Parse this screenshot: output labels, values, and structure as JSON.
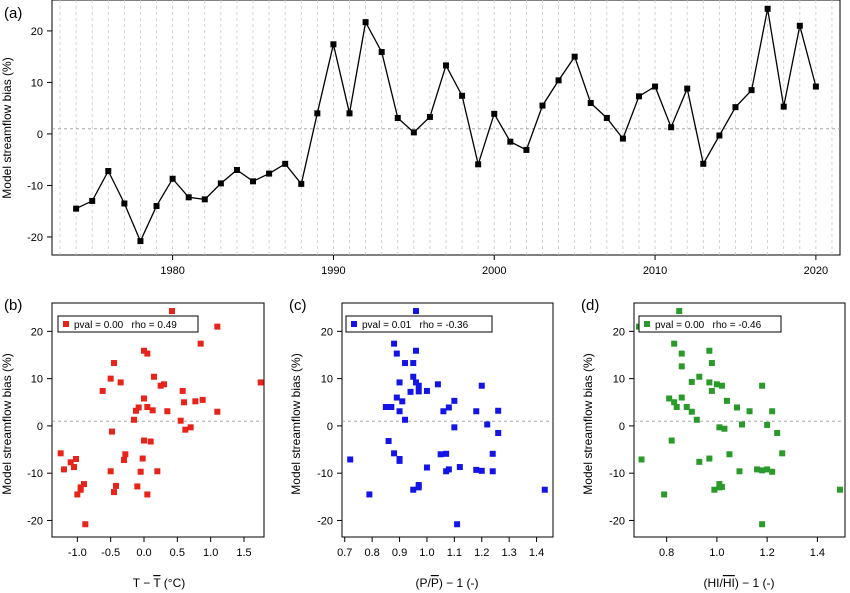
{
  "chart_data": [
    {
      "panel": "(a)",
      "type": "line",
      "title": "",
      "xlabel": "",
      "ylabel": "Model streamflow bias (%)",
      "xlim": [
        1972.5,
        2021.5
      ],
      "ylim": [
        -23.5,
        26
      ],
      "x_ticks": [
        1980,
        1990,
        2000,
        2010,
        2020
      ],
      "y_ticks": [
        -20,
        -10,
        0,
        10,
        20
      ],
      "vertical_gridlines": "dashed at every year",
      "reference_line": 1,
      "marker": "square",
      "color": "#000000",
      "x": [
        1974,
        1975,
        1976,
        1977,
        1978,
        1979,
        1980,
        1981,
        1982,
        1983,
        1984,
        1985,
        1986,
        1987,
        1988,
        1989,
        1990,
        1991,
        1992,
        1993,
        1994,
        1995,
        1996,
        1997,
        1998,
        1999,
        2000,
        2001,
        2002,
        2003,
        2004,
        2005,
        2006,
        2007,
        2008,
        2009,
        2010,
        2011,
        2012,
        2013,
        2014,
        2015,
        2016,
        2017,
        2018,
        2019,
        2020
      ],
      "values": [
        -14.5,
        -13,
        -7.2,
        -13.5,
        -20.8,
        -14,
        -8.7,
        -12.3,
        -12.7,
        -9.6,
        -7,
        -9.2,
        -7.7,
        -5.8,
        -9.7,
        4,
        17.4,
        4,
        21.7,
        15.9,
        3.1,
        0.3,
        3.3,
        13.3,
        7.4,
        -5.9,
        3.9,
        -1.5,
        -3.1,
        5.5,
        10.4,
        15,
        6,
        3.1,
        -0.9,
        7.3,
        9.2,
        1.3,
        8.8,
        -5.8,
        -0.3,
        5.2,
        8.5,
        24.3,
        5.3,
        21,
        9.2
      ]
    },
    {
      "panel": "(b)",
      "type": "scatter",
      "xlabel": "T − T̄  (°C)",
      "ylabel": "Model streamflow bias (%)",
      "xlim": [
        -1.38,
        1.8
      ],
      "ylim": [
        -23.5,
        26
      ],
      "x_ticks": [
        -1,
        -0.5,
        0,
        0.5,
        1,
        1.5
      ],
      "x_tick_labels": [
        "-1.0",
        "-0.5",
        "0.0",
        "0.5",
        "1.0",
        "1.5"
      ],
      "y_ticks": [
        -20,
        -10,
        0,
        10,
        20
      ],
      "reference_line": 1,
      "legend": "pval = 0.00   rho = 0.49",
      "legend_position": "top-left",
      "color": "#e8231a",
      "points": [
        [
          -1.0,
          -14.5
        ],
        [
          -0.95,
          -13
        ],
        [
          -0.3,
          -7.2
        ],
        [
          -0.95,
          -13.5
        ],
        [
          -0.88,
          -20.8
        ],
        [
          -0.45,
          -14
        ],
        [
          -1.05,
          -8.7
        ],
        [
          -1.2,
          -9.2
        ],
        [
          -1.1,
          -7.7
        ],
        [
          -1.25,
          -5.8
        ],
        [
          -0.9,
          -12.3
        ],
        [
          -0.42,
          -12.7
        ],
        [
          -0.5,
          -9.6
        ],
        [
          -1.02,
          -7
        ],
        [
          -0.05,
          -9.7
        ],
        [
          -0.02,
          -6.9
        ],
        [
          -0.1,
          -12.8
        ],
        [
          0.05,
          -14.5
        ],
        [
          0.2,
          -9.6
        ],
        [
          0.1,
          -3.3
        ],
        [
          -0.28,
          -6
        ],
        [
          0.0,
          -3.1
        ],
        [
          -0.48,
          -1.2
        ],
        [
          0.62,
          -0.8
        ],
        [
          0.55,
          1.1
        ],
        [
          0.7,
          -0.3
        ],
        [
          -0.15,
          1.3
        ],
        [
          -0.12,
          3.2
        ],
        [
          -0.08,
          3.9
        ],
        [
          0.13,
          3.3
        ],
        [
          0.0,
          5.8
        ],
        [
          0.05,
          4
        ],
        [
          0.35,
          3.1
        ],
        [
          0.6,
          5
        ],
        [
          0.58,
          7.4
        ],
        [
          0.77,
          5.2
        ],
        [
          0.88,
          5.5
        ],
        [
          1.1,
          3
        ],
        [
          0.3,
          8.8
        ],
        [
          0.25,
          8.5
        ],
        [
          0.15,
          10.4
        ],
        [
          -0.5,
          10
        ],
        [
          -0.35,
          9.2
        ],
        [
          -0.45,
          13.3
        ],
        [
          -0.62,
          7.4
        ],
        [
          0.0,
          15.9
        ],
        [
          0.05,
          15.3
        ],
        [
          0.85,
          17.4
        ],
        [
          1.1,
          21
        ],
        [
          0.42,
          24.3
        ],
        [
          1.75,
          9.2
        ],
        [
          0.08,
          21.7
        ]
      ]
    },
    {
      "panel": "(c)",
      "type": "scatter",
      "xlabel": "(P/P̄) − 1  (-)",
      "ylabel": "Model streamflow bias (%)",
      "xlim": [
        0.69,
        1.46
      ],
      "ylim": [
        -23.5,
        26
      ],
      "x_ticks": [
        0.7,
        0.8,
        0.9,
        1.0,
        1.1,
        1.2,
        1.3,
        1.4
      ],
      "x_tick_labels": [
        "0.7",
        "0.8",
        "0.9",
        "1.0",
        "1.1",
        "1.2",
        "1.3",
        "1.4"
      ],
      "y_ticks": [
        -20,
        -10,
        0,
        10,
        20
      ],
      "reference_line": 1,
      "legend": "pval = 0.01   rho = -0.36",
      "legend_position": "top-left",
      "color": "#1414e6",
      "points": [
        [
          0.72,
          -7.1
        ],
        [
          0.79,
          -14.5
        ],
        [
          0.86,
          -3.2
        ],
        [
          0.88,
          -5.8
        ],
        [
          0.9,
          -7.4
        ],
        [
          0.9,
          -7
        ],
        [
          0.95,
          -13.5
        ],
        [
          0.97,
          -12.5
        ],
        [
          0.97,
          -13
        ],
        [
          1.0,
          -8.8
        ],
        [
          1.05,
          -6
        ],
        [
          1.07,
          -9.6
        ],
        [
          1.07,
          -5.9
        ],
        [
          1.08,
          -9.2
        ],
        [
          1.11,
          -20.8
        ],
        [
          1.12,
          -8.7
        ],
        [
          1.18,
          -9.3
        ],
        [
          1.2,
          -9.5
        ],
        [
          1.24,
          -9.6
        ],
        [
          1.24,
          -5.9
        ],
        [
          1.26,
          -1.5
        ],
        [
          1.43,
          -13.5
        ],
        [
          0.85,
          4
        ],
        [
          0.86,
          4
        ],
        [
          0.87,
          4
        ],
        [
          0.89,
          6
        ],
        [
          0.9,
          3.1
        ],
        [
          0.91,
          5.2
        ],
        [
          0.92,
          1.3
        ],
        [
          0.94,
          7.2
        ],
        [
          0.95,
          10.4
        ],
        [
          0.96,
          9.2
        ],
        [
          0.97,
          7.3
        ],
        [
          0.97,
          8.5
        ],
        [
          1.0,
          7.4
        ],
        [
          1.04,
          8.8
        ],
        [
          1.06,
          3.1
        ],
        [
          1.08,
          3.9
        ],
        [
          1.1,
          5.3
        ],
        [
          1.18,
          3.1
        ],
        [
          1.2,
          8.5
        ],
        [
          1.22,
          0.3
        ],
        [
          1.26,
          3.2
        ],
        [
          0.9,
          9.2
        ],
        [
          0.92,
          13.3
        ],
        [
          0.95,
          13.3
        ],
        [
          0.96,
          15.9
        ],
        [
          0.89,
          15.3
        ],
        [
          0.88,
          17.4
        ],
        [
          0.76,
          21
        ],
        [
          0.84,
          21.7
        ],
        [
          0.96,
          24.3
        ],
        [
          1.1,
          -0.3
        ]
      ]
    },
    {
      "panel": "(d)",
      "type": "scatter",
      "xlabel": "(HI/HI̅) − 1  (-)",
      "ylabel": "Model streamflow bias (%)",
      "xlim": [
        0.67,
        1.51
      ],
      "ylim": [
        -23.5,
        26
      ],
      "x_ticks": [
        0.8,
        1.0,
        1.2,
        1.4
      ],
      "x_tick_labels": [
        "0.8",
        "1.0",
        "1.2",
        "1.4"
      ],
      "y_ticks": [
        -20,
        -10,
        0,
        10,
        20
      ],
      "reference_line": 1,
      "legend": "pval = 0.00   rho = -0.46",
      "legend_position": "top-left",
      "color": "#2a9a2a",
      "points": [
        [
          0.7,
          -7.1
        ],
        [
          0.79,
          -14.5
        ],
        [
          0.82,
          -3.1
        ],
        [
          0.93,
          -7.6
        ],
        [
          0.97,
          -6.9
        ],
        [
          0.99,
          -13.5
        ],
        [
          1.01,
          -12.3
        ],
        [
          1.02,
          -12.9
        ],
        [
          1.01,
          -13
        ],
        [
          1.05,
          -6
        ],
        [
          1.09,
          -9.6
        ],
        [
          1.16,
          -9.2
        ],
        [
          1.18,
          -20.8
        ],
        [
          1.18,
          -9.4
        ],
        [
          1.2,
          -9.2
        ],
        [
          1.22,
          -9.7
        ],
        [
          1.24,
          -1.5
        ],
        [
          1.26,
          -5.8
        ],
        [
          1.49,
          -13.5
        ],
        [
          0.69,
          21
        ],
        [
          0.81,
          21.7
        ],
        [
          0.83,
          17.4
        ],
        [
          0.86,
          15.3
        ],
        [
          0.83,
          5
        ],
        [
          0.84,
          4
        ],
        [
          0.86,
          6
        ],
        [
          0.88,
          4
        ],
        [
          0.9,
          3
        ],
        [
          0.92,
          1.3
        ],
        [
          0.81,
          5.8
        ],
        [
          0.86,
          12.6
        ],
        [
          0.9,
          9.3
        ],
        [
          0.93,
          10.4
        ],
        [
          0.97,
          9.2
        ],
        [
          0.97,
          15.9
        ],
        [
          0.98,
          13.3
        ],
        [
          0.98,
          7.4
        ],
        [
          1.0,
          8.8
        ],
        [
          1.01,
          -0.3
        ],
        [
          1.03,
          -0.6
        ],
        [
          1.04,
          5.3
        ],
        [
          1.08,
          3.9
        ],
        [
          1.1,
          0.3
        ],
        [
          1.13,
          3.1
        ],
        [
          1.18,
          8.5
        ],
        [
          1.2,
          0.2
        ],
        [
          1.22,
          3.1
        ],
        [
          1.02,
          8.5
        ],
        [
          0.82,
          21.2
        ],
        [
          0.85,
          24.3
        ]
      ]
    }
  ]
}
